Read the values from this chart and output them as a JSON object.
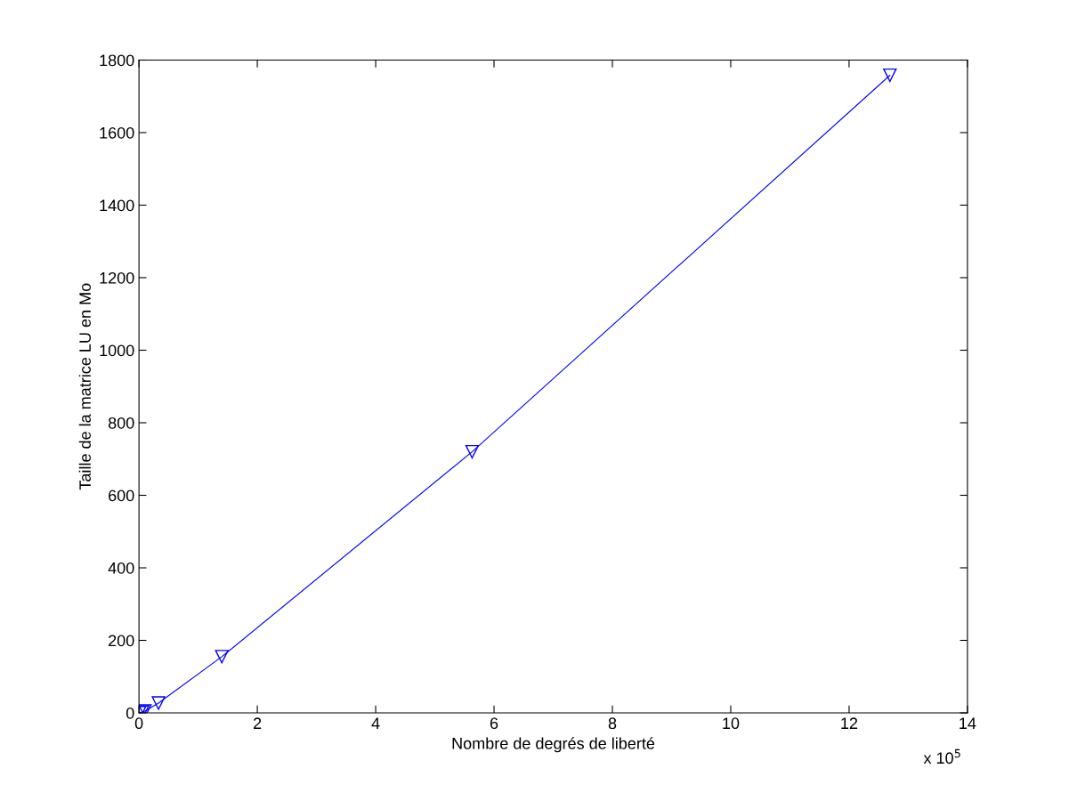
{
  "chart_data": {
    "type": "line",
    "xlabel": "Nombre de degrés de liberté",
    "ylabel": "Taille de la matrice LU en Mo",
    "annotations": [
      "x 10$^{5}$"
    ],
    "x": [
      0.01,
      0.06,
      0.1,
      0.33,
      1.4,
      5.63,
      12.69
    ],
    "series": [
      {
        "color": "#0000ff",
        "values": [
          0.5,
          2,
          5,
          27,
          155,
          720,
          1758
        ]
      }
    ],
    "marker": "triangle",
    "xlim": [
      0,
      14
    ],
    "xticks": [
      0,
      2,
      4,
      6,
      8,
      10,
      12,
      14
    ],
    "ylim": [
      0,
      1800
    ],
    "yticks": [
      0,
      200,
      400,
      600,
      800,
      1000,
      1200,
      1400,
      1600,
      1800
    ],
    "grid": false,
    "legend": false
  }
}
